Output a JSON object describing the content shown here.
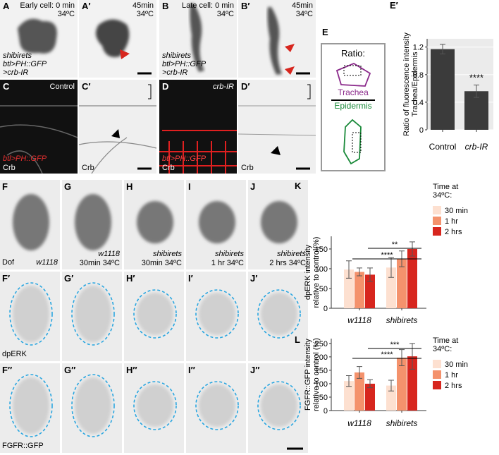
{
  "panels": {
    "A": {
      "letter": "A",
      "caption": "Early cell: 0 min",
      "temp": "34ºC",
      "genotype": [
        "shibirets",
        "btl>PH::GFP",
        ">crb-IR"
      ]
    },
    "A2": {
      "letter": "A′",
      "caption": "45min",
      "temp": "34ºC"
    },
    "B": {
      "letter": "B",
      "caption": "Late cell: 0 min",
      "temp": "34ºC",
      "genotype": [
        "shibirets",
        "btl>PH::GFP",
        ">crb-IR"
      ]
    },
    "B2": {
      "letter": "B′",
      "caption": "45min",
      "temp": "34ºC"
    },
    "C": {
      "letter": "C",
      "label": "Control",
      "marker1": "btl>PH::GFP",
      "marker2": "Crb"
    },
    "C2": {
      "letter": "C′",
      "marker": "Crb"
    },
    "D": {
      "letter": "D",
      "label": "crb-IR",
      "marker1": "btl>PH::GFP",
      "marker2": "Crb"
    },
    "D2": {
      "letter": "D′",
      "marker": "Crb"
    },
    "E": {
      "letter": "E",
      "ratio": "Ratio:",
      "numerator": "Trachea",
      "denominator": "Epidermis"
    },
    "F": {
      "letter": "F",
      "marker": "Dof",
      "genotype": "w1118"
    },
    "G": {
      "letter": "G",
      "genotype": "w1118",
      "condition": "30min 34ºC"
    },
    "H": {
      "letter": "H",
      "genotype": "shibirets",
      "condition": "30min 34ºC"
    },
    "I": {
      "letter": "I",
      "genotype": "shibirets",
      "condition": "1 hr 34ºC"
    },
    "J": {
      "letter": "J",
      "genotype": "shibirets",
      "condition": "2 hrs 34ºC"
    },
    "F2": {
      "letter": "F′",
      "marker": "dpERK"
    },
    "G2": {
      "letter": "G′"
    },
    "H2": {
      "letter": "H′"
    },
    "I2": {
      "letter": "I′"
    },
    "J2": {
      "letter": "J′"
    },
    "F3": {
      "letter": "F″",
      "marker": "FGFR::GFP"
    },
    "G3": {
      "letter": "G″"
    },
    "H3": {
      "letter": "H″"
    },
    "I3": {
      "letter": "I″"
    },
    "J3": {
      "letter": "J″"
    }
  },
  "chart_data": [
    {
      "type": "bar",
      "panel_label": "E′",
      "y_label": [
        "Ratio of fluorescence intensity",
        "Trachea/Epidermis"
      ],
      "categories": [
        "Control",
        "crb-IR"
      ],
      "values": [
        1.17,
        0.56
      ],
      "errors": [
        0.07,
        0.09
      ],
      "color": "#3b3b3b",
      "ylim": [
        0,
        1.32
      ],
      "yticks": [
        0,
        0.4,
        0.8,
        1.2
      ],
      "annotations": [
        "****"
      ]
    },
    {
      "type": "grouped_bar",
      "panel_label": "K",
      "y_label": [
        "dpERK intensity",
        "relative to control(%)"
      ],
      "categories": [
        "w1118",
        "shibirets"
      ],
      "legend_title": [
        "Time at",
        "34ºC:"
      ],
      "series": [
        {
          "name": "30 min",
          "color": "#fde0d0",
          "values": [
            98,
            103
          ],
          "errors": [
            22,
            25
          ]
        },
        {
          "name": "1 hr",
          "color": "#f4926c",
          "values": [
            92,
            125
          ],
          "errors": [
            10,
            20
          ]
        },
        {
          "name": "2 hrs",
          "color": "#d7261e",
          "values": [
            85,
            150
          ],
          "errors": [
            17,
            18
          ]
        }
      ],
      "ylim": [
        0,
        182
      ],
      "yticks": [
        0,
        50,
        100,
        150
      ],
      "annotations": [
        "**",
        "****"
      ]
    },
    {
      "type": "grouped_bar",
      "panel_label": "L",
      "y_label": [
        "FGFR::GFP intensity",
        "relative to control (%)"
      ],
      "categories": [
        "w1118",
        "shibirets"
      ],
      "legend_title": [
        "Time at",
        "34ºC:"
      ],
      "series": [
        {
          "name": "30 min",
          "color": "#fde0d0",
          "values": [
            110,
            93
          ],
          "errors": [
            20,
            20
          ]
        },
        {
          "name": "1 hr",
          "color": "#f4926c",
          "values": [
            142,
            197
          ],
          "errors": [
            22,
            30
          ]
        },
        {
          "name": "2 hrs",
          "color": "#d7261e",
          "values": [
            100,
            202
          ],
          "errors": [
            15,
            48
          ]
        }
      ],
      "ylim": [
        0,
        268
      ],
      "yticks": [
        0,
        50,
        100,
        150,
        200,
        250
      ],
      "annotations": [
        "***",
        "****"
      ]
    }
  ]
}
